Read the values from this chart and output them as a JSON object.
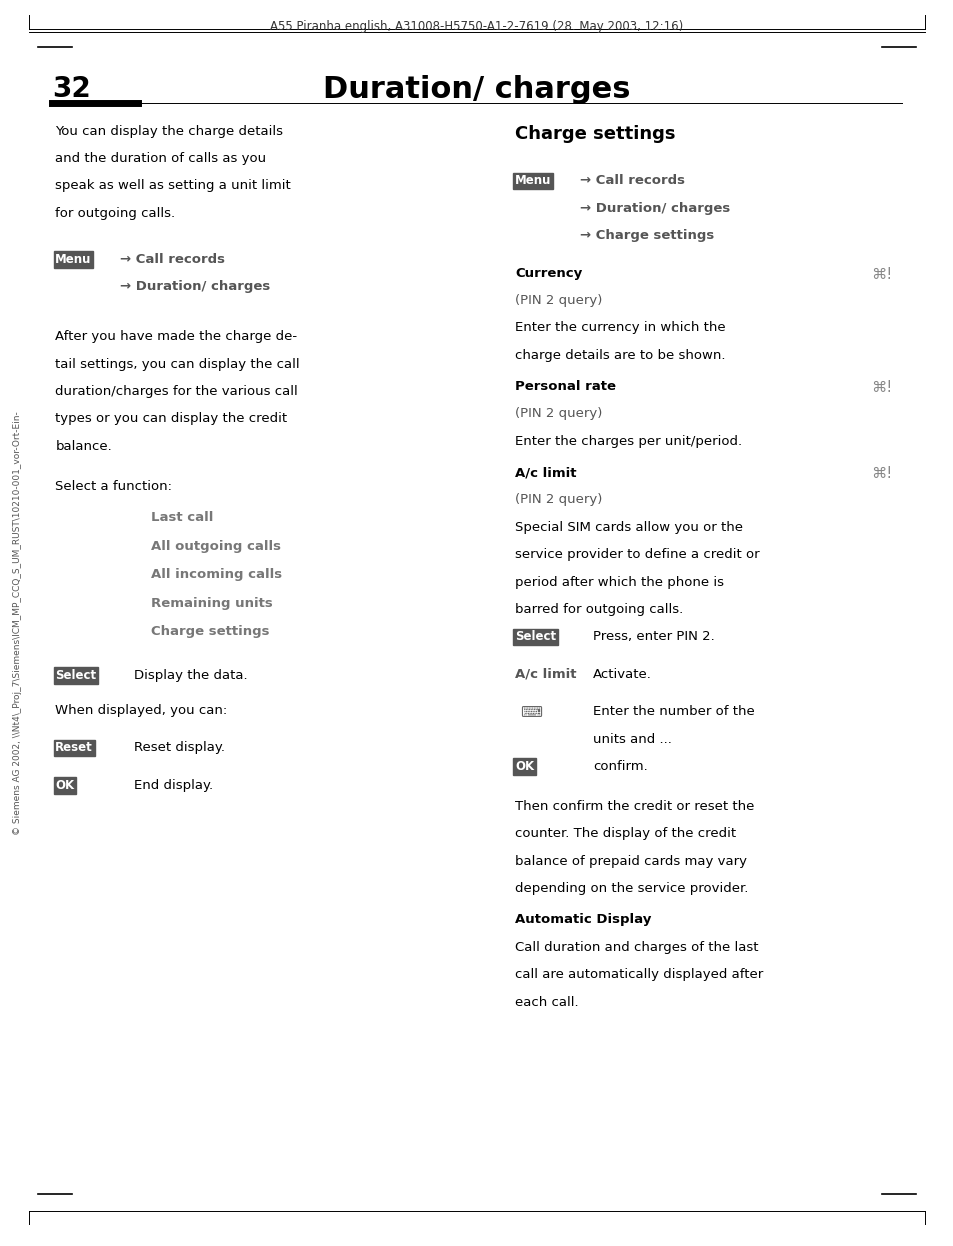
{
  "header_text": "A55 Piranha english, A31008-H5750-A1-2-7619 (28. May 2003, 12:16)",
  "page_number": "32",
  "title": "Duration/ charges",
  "bg_color": "#ffffff",
  "text_color": "#000000",
  "gray_text_color": "#555555",
  "dark_gray": "#333333",
  "body_font_size": 9.5,
  "small_font_size": 8.5
}
